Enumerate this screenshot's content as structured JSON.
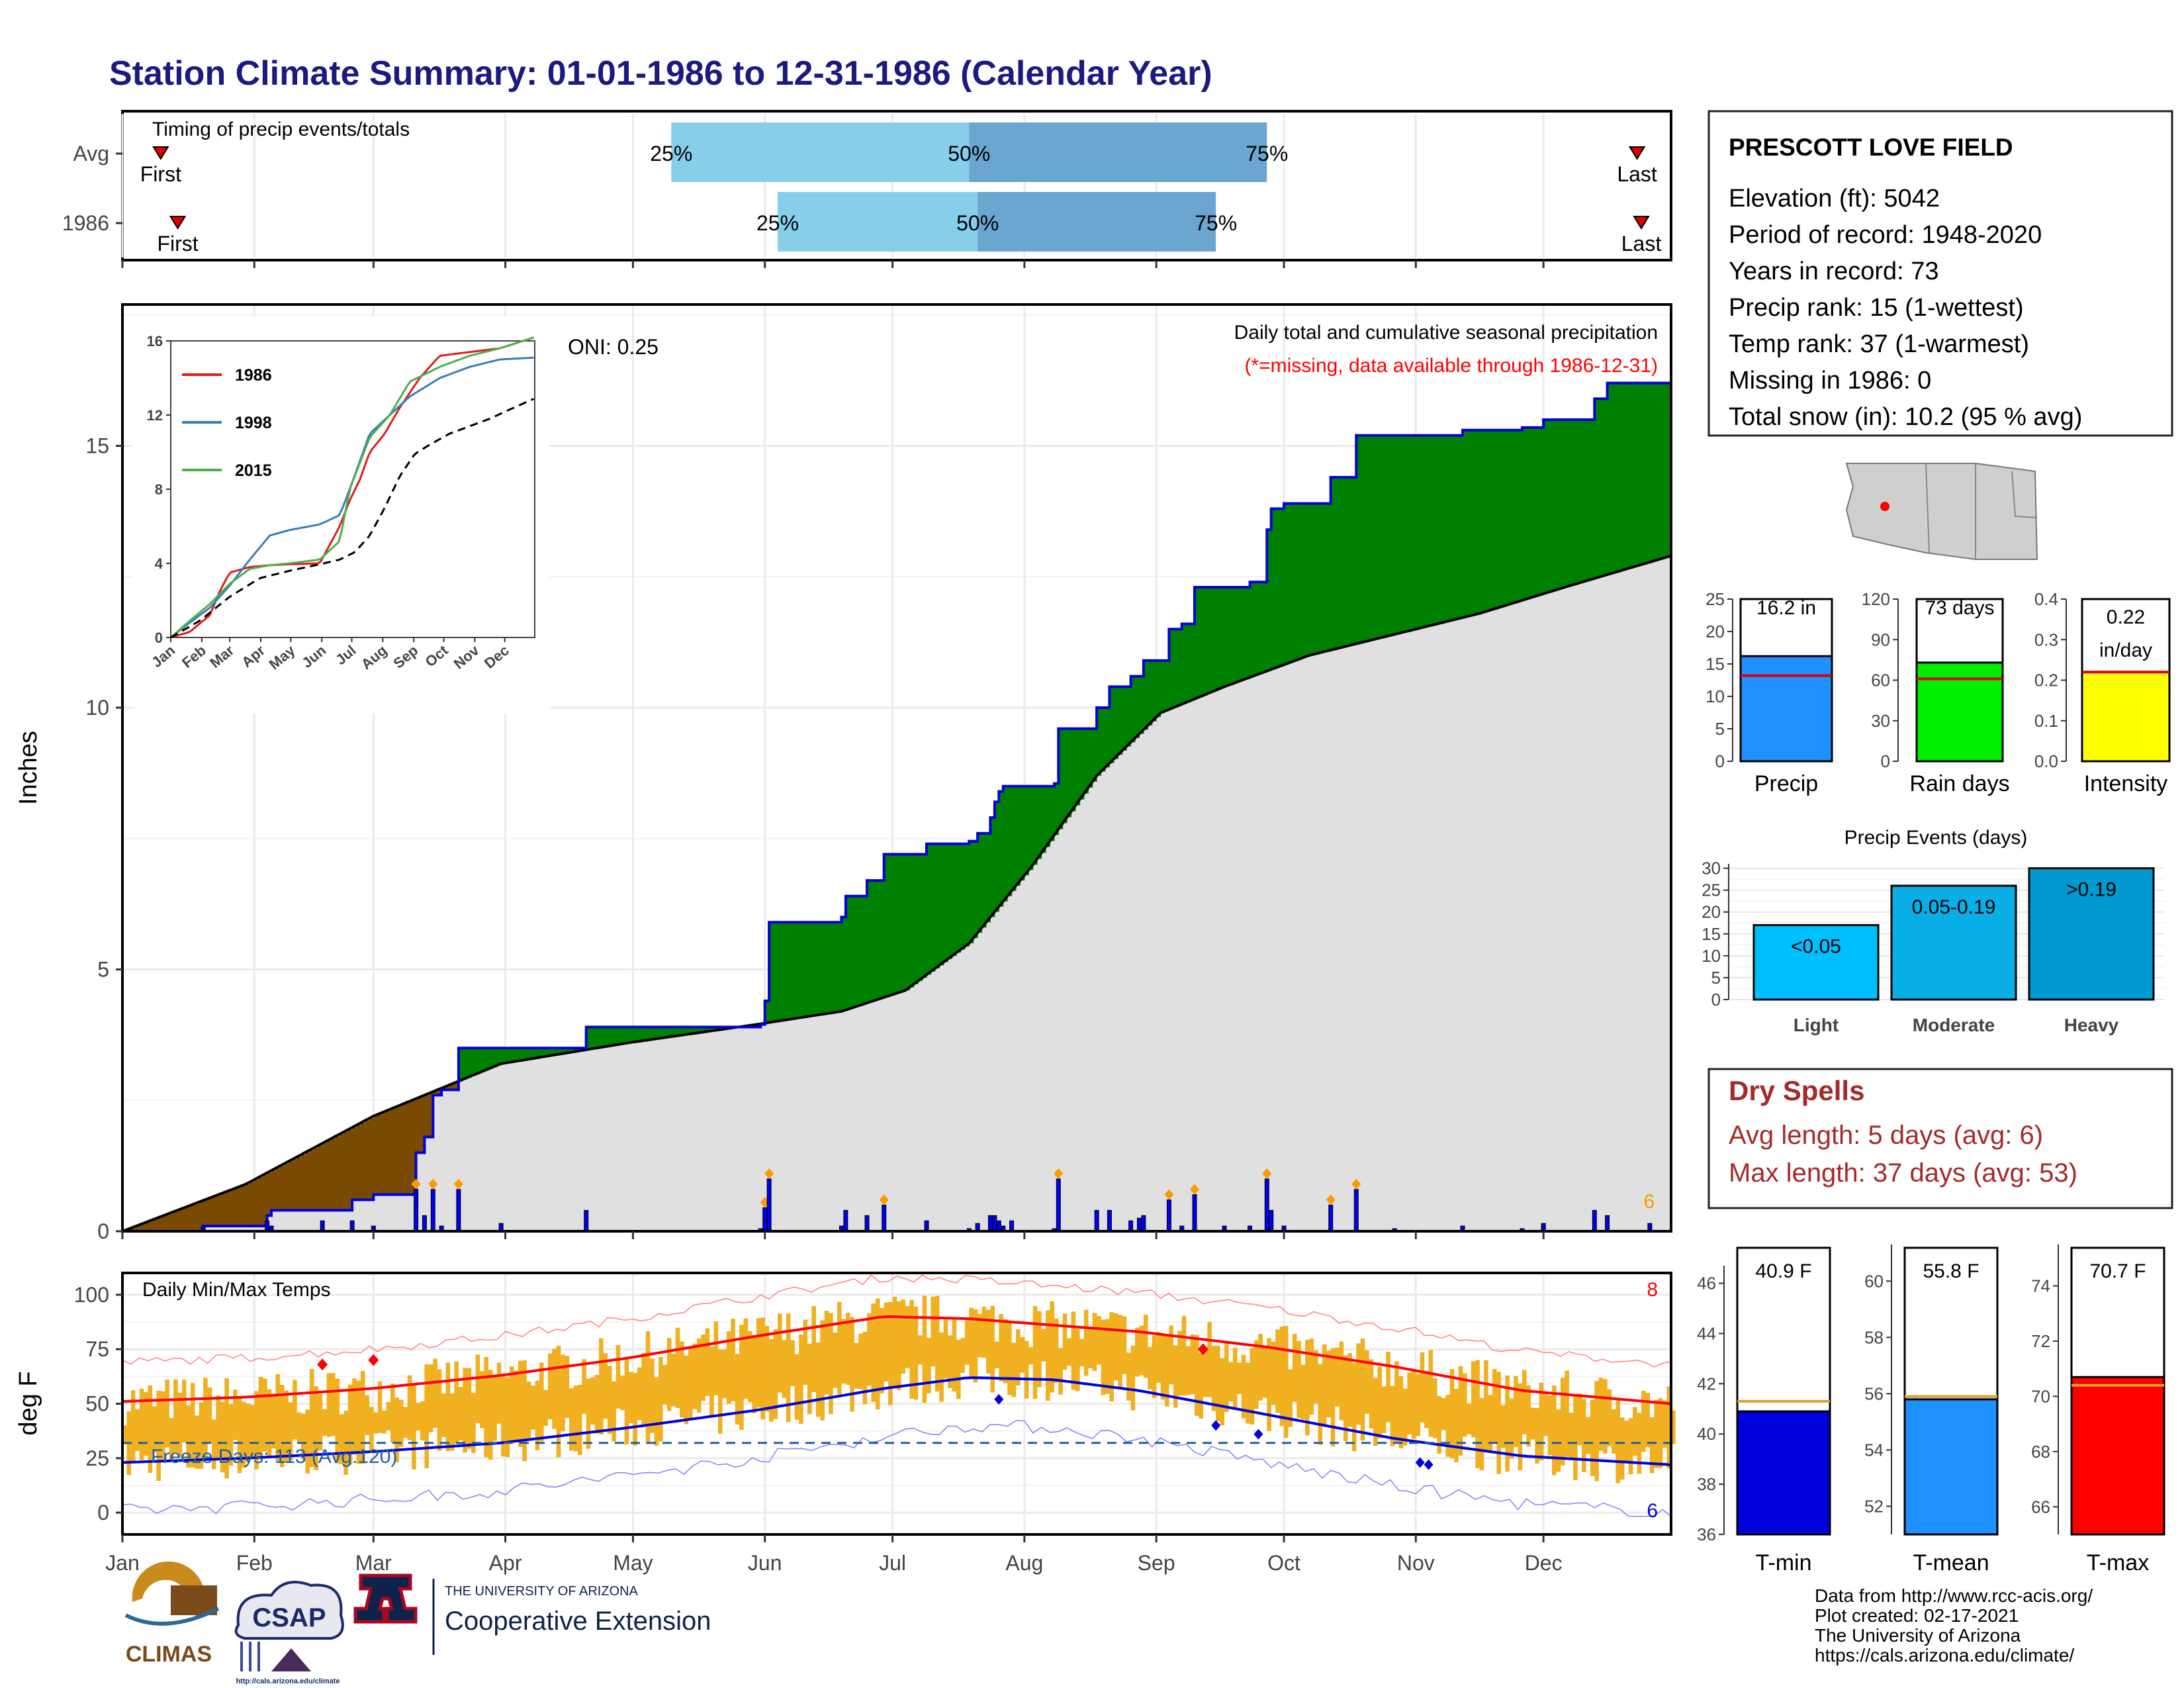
{
  "title": "Station Climate Summary: 01-01-1986 to 12-31-1986 (Calendar Year)",
  "colors": {
    "title": "#1a1a80",
    "cum_current": "#008000",
    "cum_behind": "#7a4a00",
    "cum_avg": "#e0e0e0",
    "bars": "#0000ee",
    "timing_light": "#87ceeb",
    "timing_dark": "#6aa6cf",
    "tmax": "#ff0000",
    "tmin": "#0000dd",
    "temp_range": "#f0b020",
    "freeze_line": "#1f5fa0",
    "precip_bar": "#1e90ff",
    "raindays_bar": "#00ee00",
    "intensity_bar": "#ffff00",
    "light_bar": "#00bfff",
    "moderate_bar": "#0aaee6",
    "heavy_bar": "#009ad0",
    "dry_text": "#a52a2a",
    "avg_marker": "#e0a030",
    "tmean_bar": "#1e90ff"
  },
  "timing": {
    "label": "Timing of precip events/totals",
    "rows": [
      {
        "name": "Avg",
        "first_day": 10,
        "p25_day": 130,
        "p50_day": 200,
        "p75_day": 270,
        "last_day": 357
      },
      {
        "name": "1986",
        "first_day": 14,
        "p25_day": 155,
        "p50_day": 202,
        "p75_day": 258,
        "last_day": 358
      }
    ],
    "p25_label": "25%",
    "p50_label": "50%",
    "p75_label": "75%",
    "first_label": "First",
    "last_label": "Last"
  },
  "main": {
    "ylabel": "Inches",
    "title": "Daily total and cumulative seasonal precipitation",
    "subtitle": "(*=missing, data available through 1986-12-31)",
    "oni": "ONI: 0.25",
    "corner_count": "6",
    "yticks": [
      "0",
      "5",
      "10",
      "15"
    ]
  },
  "inset": {
    "legend": [
      "1986",
      "1998",
      "2015"
    ],
    "legend_colors": [
      "#e41a1c",
      "#377eb8",
      "#4daf4a"
    ],
    "yticks": [
      "0",
      "4",
      "8",
      "12",
      "16"
    ],
    "months": [
      "Jan",
      "Feb",
      "Mar",
      "Apr",
      "May",
      "Jun",
      "Jul",
      "Aug",
      "Sep",
      "Oct",
      "Nov",
      "Dec"
    ]
  },
  "months": [
    "Jan",
    "Feb",
    "Mar",
    "Apr",
    "May",
    "Jun",
    "Jul",
    "Aug",
    "Sep",
    "Oct",
    "Nov",
    "Dec"
  ],
  "temps": {
    "label": "Daily Min/Max Temps",
    "ylabel": "deg F",
    "freeze": "Freeze Days: 113 (Avg:120)",
    "count_max": "8",
    "count_min": "6",
    "yticks": [
      "0",
      "25",
      "50",
      "75",
      "100"
    ]
  },
  "station": {
    "name": "PRESCOTT LOVE FIELD",
    "lines": [
      "Elevation (ft): 5042",
      "Period of record: 1948-2020",
      "Years in record: 73",
      "Precip rank: 15 (1-wettest)",
      "Temp rank: 37 (1-warmest)",
      "Missing in 1986: 0",
      "Total snow (in): 10.2 (95 % avg)"
    ]
  },
  "mini_bars": [
    {
      "label": "Precip",
      "value_text": "16.2 in",
      "value": 16.2,
      "avg": 13.2,
      "max": 25,
      "ticks": [
        "0",
        "5",
        "10",
        "15",
        "20",
        "25"
      ]
    },
    {
      "label": "Rain days",
      "value_text": "73 days",
      "value": 73,
      "avg": 61,
      "max": 120,
      "ticks": [
        "0",
        "30",
        "60",
        "90",
        "120"
      ]
    },
    {
      "label": "Intensity",
      "value_text": "0.22",
      "value_text2": "in/day",
      "value": 0.22,
      "avg": 0.22,
      "max": 0.4,
      "ticks": [
        "0.0",
        "0.1",
        "0.2",
        "0.3",
        "0.4"
      ]
    }
  ],
  "events": {
    "title": "Precip Events (days)",
    "ticks": [
      "0",
      "5",
      "10",
      "15",
      "20",
      "25",
      "30"
    ],
    "bars": [
      {
        "label": "Light",
        "range": "<0.05",
        "value": 17
      },
      {
        "label": "Moderate",
        "range": "0.05-0.19",
        "value": 26
      },
      {
        "label": "Heavy",
        "range": ">0.19",
        "value": 30
      }
    ]
  },
  "dry": {
    "title": "Dry Spells",
    "avg": "Avg length: 5 days (avg: 6)",
    "max": "Max length: 37 days (avg: 53)"
  },
  "temp_bars": [
    {
      "label": "T-min",
      "value_text": "40.9 F",
      "value": 40.9,
      "avg": 41.3,
      "min": 36,
      "max": 46,
      "ticks": [
        "36",
        "38",
        "40",
        "42",
        "44",
        "46"
      ]
    },
    {
      "label": "T-mean",
      "value_text": "55.8 F",
      "value": 55.8,
      "avg": 55.9,
      "min": 51,
      "max": 61,
      "ticks": [
        "52",
        "54",
        "56",
        "58",
        "60"
      ]
    },
    {
      "label": "T-max",
      "value_text": "70.7 F",
      "value": 70.7,
      "avg": 70.4,
      "min": 65,
      "max": 75,
      "ticks": [
        "66",
        "68",
        "70",
        "72",
        "74"
      ]
    }
  ],
  "footer": {
    "lines": [
      "Data from http://www.rcc-acis.org/",
      "Plot created: 02-17-2021",
      "The University of Arizona",
      "https://cals.arizona.edu/climate/"
    ],
    "climas": "CLIMAS",
    "csap": "CSAP",
    "csap_url": "http://cals.arizona.edu/climate",
    "ua_small": "THE UNIVERSITY OF ARIZONA",
    "ua_big": "Cooperative Extension"
  },
  "chart_data": [
    {
      "type": "area",
      "title": "Daily total and cumulative seasonal precipitation",
      "ylabel": "Inches",
      "ylim": [
        0,
        17.5
      ],
      "x_unit": "day of year",
      "series": [
        {
          "name": "1986",
          "x": [
            1,
            20,
            31,
            35,
            36,
            55,
            60,
            70,
            72,
            74,
            76,
            80,
            100,
            110,
            151,
            152,
            153,
            155,
            170,
            171,
            176,
            180,
            185,
            190,
            200,
            202,
            205,
            206,
            207,
            208,
            220,
            221,
            223,
            230,
            233,
            238,
            241,
            247,
            250,
            253,
            266,
            270,
            271,
            274,
            285,
            291,
            295,
            316,
            330,
            335,
            346,
            347,
            350,
            365
          ],
          "y": [
            0,
            0.1,
            0.1,
            0.3,
            0.4,
            0.6,
            0.7,
            1.5,
            1.8,
            2.6,
            2.7,
            3.5,
            3.5,
            3.9,
            3.95,
            4.4,
            5.9,
            5.9,
            6.0,
            6.4,
            6.7,
            7.2,
            7.2,
            7.4,
            7.45,
            7.6,
            7.9,
            8.2,
            8.4,
            8.5,
            8.55,
            9.6,
            9.6,
            10.0,
            10.4,
            10.6,
            10.9,
            11.5,
            11.6,
            12.3,
            12.4,
            13.4,
            13.8,
            13.9,
            14.4,
            15.2,
            15.2,
            15.3,
            15.35,
            15.5,
            15.5,
            15.9,
            16.2,
            16.2
          ]
        },
        {
          "name": "Average",
          "x": [
            1,
            30,
            60,
            90,
            120,
            150,
            170,
            185,
            200,
            215,
            230,
            245,
            260,
            280,
            300,
            320,
            340,
            365
          ],
          "y": [
            0,
            0.9,
            2.2,
            3.2,
            3.6,
            3.95,
            4.2,
            4.6,
            5.5,
            7.0,
            8.7,
            9.9,
            10.4,
            11.0,
            11.4,
            11.8,
            12.3,
            12.9
          ]
        }
      ]
    },
    {
      "type": "line",
      "title": "",
      "ylabel": "",
      "ylim": [
        0,
        16
      ],
      "series": [
        {
          "name": "1986",
          "x": [
            1,
            20,
            40,
            50,
            60,
            80,
            100,
            120,
            150,
            170,
            180,
            190,
            200,
            215,
            230,
            250,
            270,
            300,
            330,
            365
          ],
          "y": [
            0,
            0.3,
            1.2,
            2.5,
            3.5,
            3.8,
            3.9,
            3.95,
            4.0,
            6.0,
            7.4,
            8.5,
            10.0,
            11.0,
            12.4,
            14.0,
            15.2,
            15.4,
            15.6,
            16.2
          ]
        },
        {
          "name": "1998",
          "x": [
            1,
            20,
            40,
            60,
            80,
            100,
            120,
            150,
            170,
            180,
            200,
            220,
            240,
            270,
            300,
            330,
            365
          ],
          "y": [
            0,
            0.8,
            1.6,
            2.8,
            4.2,
            5.5,
            5.8,
            6.1,
            6.6,
            8.0,
            11.0,
            12.0,
            13.0,
            14.0,
            14.6,
            15.0,
            15.1
          ]
        },
        {
          "name": "2015",
          "x": [
            1,
            20,
            40,
            60,
            80,
            100,
            120,
            150,
            170,
            180,
            200,
            220,
            240,
            270,
            300,
            330,
            365
          ],
          "y": [
            0,
            0.9,
            1.8,
            2.9,
            3.7,
            3.9,
            4.0,
            4.2,
            5.2,
            8.0,
            10.8,
            12.0,
            13.8,
            14.6,
            15.2,
            15.6,
            16.2
          ]
        },
        {
          "name": "Average",
          "x": [
            1,
            30,
            60,
            90,
            120,
            150,
            170,
            185,
            200,
            215,
            230,
            245,
            260,
            280,
            300,
            320,
            340,
            365
          ],
          "y": [
            0,
            0.9,
            2.2,
            3.2,
            3.6,
            3.95,
            4.2,
            4.6,
            5.5,
            7.0,
            8.7,
            9.9,
            10.4,
            11.0,
            11.4,
            11.8,
            12.3,
            12.9
          ]
        }
      ]
    },
    {
      "type": "line",
      "title": "Daily Min/Max Temps",
      "ylabel": "deg F",
      "ylim": [
        -10,
        110
      ],
      "series": [
        {
          "name": "Tmax normal",
          "x": [
            1,
            30,
            60,
            90,
            120,
            150,
            180,
            200,
            220,
            240,
            270,
            300,
            330,
            365
          ],
          "y": [
            51,
            53,
            57,
            63,
            71,
            81,
            90,
            89,
            86,
            83,
            76,
            67,
            56,
            50
          ]
        },
        {
          "name": "Tmin normal",
          "x": [
            1,
            30,
            60,
            90,
            120,
            150,
            180,
            200,
            220,
            240,
            270,
            300,
            330,
            365
          ],
          "y": [
            23,
            25,
            28,
            32,
            39,
            47,
            57,
            62,
            61,
            56,
            45,
            34,
            26,
            22
          ]
        },
        {
          "name": "Freeze",
          "x": [
            1,
            365
          ],
          "y": [
            32,
            32
          ]
        }
      ]
    },
    {
      "type": "bar",
      "title": "",
      "categories": [
        "Precip",
        "Rain days",
        "Intensity"
      ],
      "values": [
        16.2,
        73,
        0.22
      ]
    },
    {
      "type": "bar",
      "title": "Precip Events (days)",
      "categories": [
        "Light",
        "Moderate",
        "Heavy"
      ],
      "values": [
        17,
        26,
        30
      ]
    },
    {
      "type": "bar",
      "title": "",
      "categories": [
        "T-min",
        "T-mean",
        "T-max"
      ],
      "values": [
        40.9,
        55.8,
        70.7
      ]
    }
  ]
}
